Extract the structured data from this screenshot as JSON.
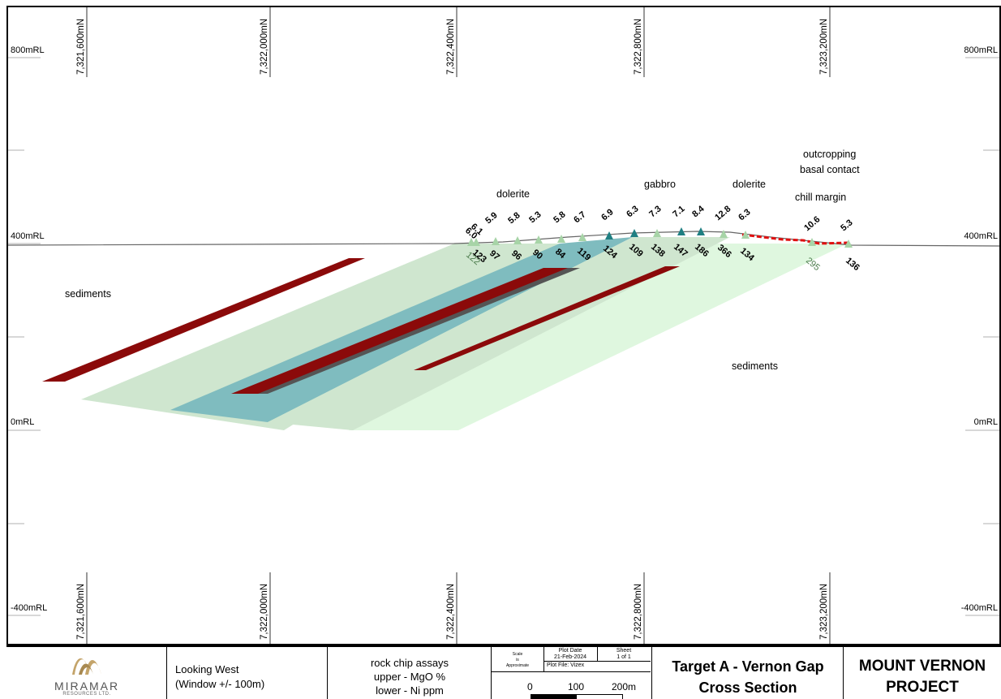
{
  "northings": [
    "7,321,600mN",
    "7,322,000mN",
    "7,322,400mN",
    "7,322,800mN",
    "7,323,200mN"
  ],
  "rl_labels": {
    "rl800": "800mRL",
    "rl400": "400mRL",
    "rl0": "0mRL",
    "rlm400": "-400mRL"
  },
  "geology_labels": {
    "sediments_left": "sediments",
    "sediments_right": "sediments",
    "dolerite_left": "dolerite",
    "gabbro": "gabbro",
    "dolerite_right": "dolerite",
    "chill_margin": "chill margin",
    "outcropping_1": "outcropping",
    "outcropping_2": "basal contact"
  },
  "assays": [
    {
      "mgo": "6.0",
      "ni": "122"
    },
    {
      "mgo": "6.1",
      "ni": "123"
    },
    {
      "mgo": "5.9",
      "ni": "97"
    },
    {
      "mgo": "5.8",
      "ni": "96"
    },
    {
      "mgo": "5.3",
      "ni": "90"
    },
    {
      "mgo": "5.8",
      "ni": "84"
    },
    {
      "mgo": "6.7",
      "ni": "119"
    },
    {
      "mgo": "6.9",
      "ni": "124"
    },
    {
      "mgo": "6.3",
      "ni": "109"
    },
    {
      "mgo": "7.3",
      "ni": "138"
    },
    {
      "mgo": "7.1",
      "ni": "147"
    },
    {
      "mgo": "8.4",
      "ni": "186"
    },
    {
      "mgo": "12.8",
      "ni": "366"
    },
    {
      "mgo": "6.3",
      "ni": "134"
    },
    {
      "mgo": "10.6",
      "ni": "295"
    },
    {
      "mgo": "5.3",
      "ni": "136"
    }
  ],
  "colors": {
    "light_green": "#cfe6cf",
    "pale_green": "#dff7df",
    "teal": "#7fbcbf",
    "dark_red": "#8b0a0a",
    "triangle_light": "#a7d4a7",
    "triangle_dark": "#1f7f82",
    "contact_red": "#e01010"
  },
  "title_block": {
    "company": "MIRAMAR",
    "company_sub": "RESOURCES LTD.",
    "view_1": "Looking West",
    "view_2": "(Window +/- 100m)",
    "legend_1": "rock chip assays",
    "legend_2": "upper - MgO %",
    "legend_3": "lower - Ni ppm",
    "scale_label_1": "Scale",
    "scale_label_2": "is",
    "scale_label_3": "Approximate",
    "plot_date_label": "Plot Date",
    "plot_date": "21-Feb-2024",
    "sheet_label": "Sheet",
    "sheet": "1 of 1",
    "plot_file": "Plot File: Vizex",
    "scale_0": "0",
    "scale_100": "100",
    "scale_200": "200m",
    "target_1": "Target A - Vernon Gap",
    "target_2": "Cross Section",
    "project_1": "MOUNT VERNON",
    "project_2": "PROJECT"
  }
}
